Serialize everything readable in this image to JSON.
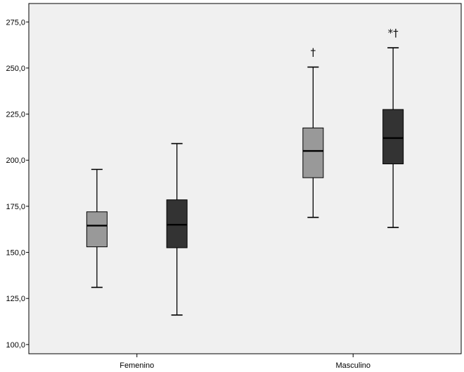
{
  "chart_data": {
    "type": "boxplot",
    "title": "",
    "xlabel": "",
    "ylabel": "",
    "ylim": [
      95,
      285
    ],
    "yticks": [
      100,
      125,
      150,
      175,
      200,
      225,
      250,
      275
    ],
    "ytick_labels": [
      "100,0",
      "125,0",
      "150,0",
      "175,0",
      "200,0",
      "225,0",
      "250,0",
      "275,0"
    ],
    "categories": [
      "Femenino",
      "Masculino"
    ],
    "grid": false,
    "legend": "none",
    "series": [
      {
        "color": "#999999",
        "boxes": [
          {
            "category": "Femenino",
            "min": 131,
            "q1": 153,
            "median": 164.5,
            "q3": 172,
            "max": 195,
            "annotation": ""
          },
          {
            "category": "Masculino",
            "min": 169,
            "q1": 190.5,
            "median": 205,
            "q3": 217.5,
            "max": 250.5,
            "annotation": "†"
          }
        ]
      },
      {
        "color": "#333333",
        "boxes": [
          {
            "category": "Femenino",
            "min": 116,
            "q1": 152.5,
            "median": 165,
            "q3": 178.5,
            "max": 209,
            "annotation": ""
          },
          {
            "category": "Masculino",
            "min": 163.5,
            "q1": 198,
            "median": 212,
            "q3": 227.5,
            "max": 261,
            "annotation": "*†"
          }
        ]
      }
    ],
    "colors": {
      "plot_background": "#f0f0f0",
      "axis": "#000000"
    }
  }
}
